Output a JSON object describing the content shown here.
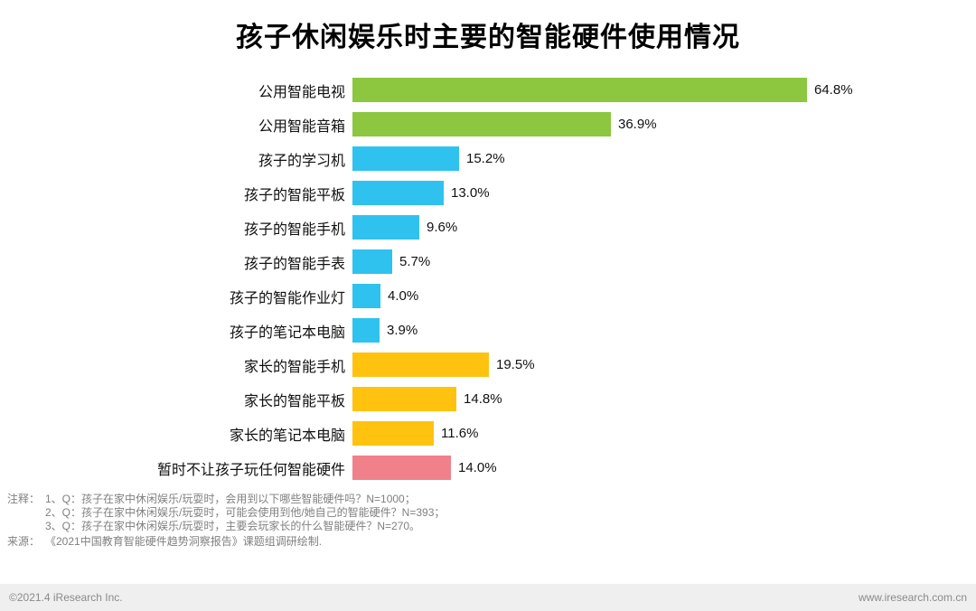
{
  "title": "孩子休闲娱乐时主要的智能硬件使用情况",
  "chart_data": {
    "type": "bar",
    "orientation": "horizontal",
    "title": "孩子休闲娱乐时主要的智能硬件使用情况",
    "xlim": [
      0,
      70
    ],
    "grid": false,
    "categories": [
      "公用智能电视",
      "公用智能音箱",
      "孩子的学习机",
      "孩子的智能平板",
      "孩子的智能手机",
      "孩子的智能手表",
      "孩子的智能作业灯",
      "孩子的笔记本电脑",
      "家长的智能手机",
      "家长的智能平板",
      "家长的笔记本电脑",
      "暂时不让孩子玩任何智能硬件"
    ],
    "values": [
      64.8,
      36.9,
      15.2,
      13.0,
      9.6,
      5.7,
      4.0,
      3.9,
      19.5,
      14.8,
      11.6,
      14.0
    ],
    "value_labels": [
      "64.8%",
      "36.9%",
      "15.2%",
      "13.0%",
      "9.6%",
      "5.7%",
      "4.0%",
      "3.9%",
      "19.5%",
      "14.8%",
      "11.6%",
      "14.0%"
    ],
    "bar_colors": [
      "#8dc63f",
      "#8dc63f",
      "#2fc2ee",
      "#2fc2ee",
      "#2fc2ee",
      "#2fc2ee",
      "#2fc2ee",
      "#2fc2ee",
      "#ffc20e",
      "#ffc20e",
      "#ffc20e",
      "#f0818a"
    ],
    "color_legend": {
      "green": "#8dc63f",
      "cyan": "#2fc2ee",
      "yellow": "#ffc20e",
      "pink": "#f0818a"
    }
  },
  "notes": {
    "label": "注释：",
    "lines": [
      "1、Q：孩子在家中休闲娱乐/玩耍时，会用到以下哪些智能硬件吗？N=1000；",
      "2、Q：孩子在家中休闲娱乐/玩耍时，可能会使用到他/她自己的智能硬件？N=393；",
      "3、Q：孩子在家中休闲娱乐/玩耍时，主要会玩家长的什么智能硬件？N=270。"
    ],
    "source_label": "来源：",
    "source": "《2021中国教育智能硬件趋势洞察报告》课题组调研绘制."
  },
  "footer": {
    "left": "©2021.4 iResearch Inc.",
    "right": "www.iresearch.com.cn"
  }
}
